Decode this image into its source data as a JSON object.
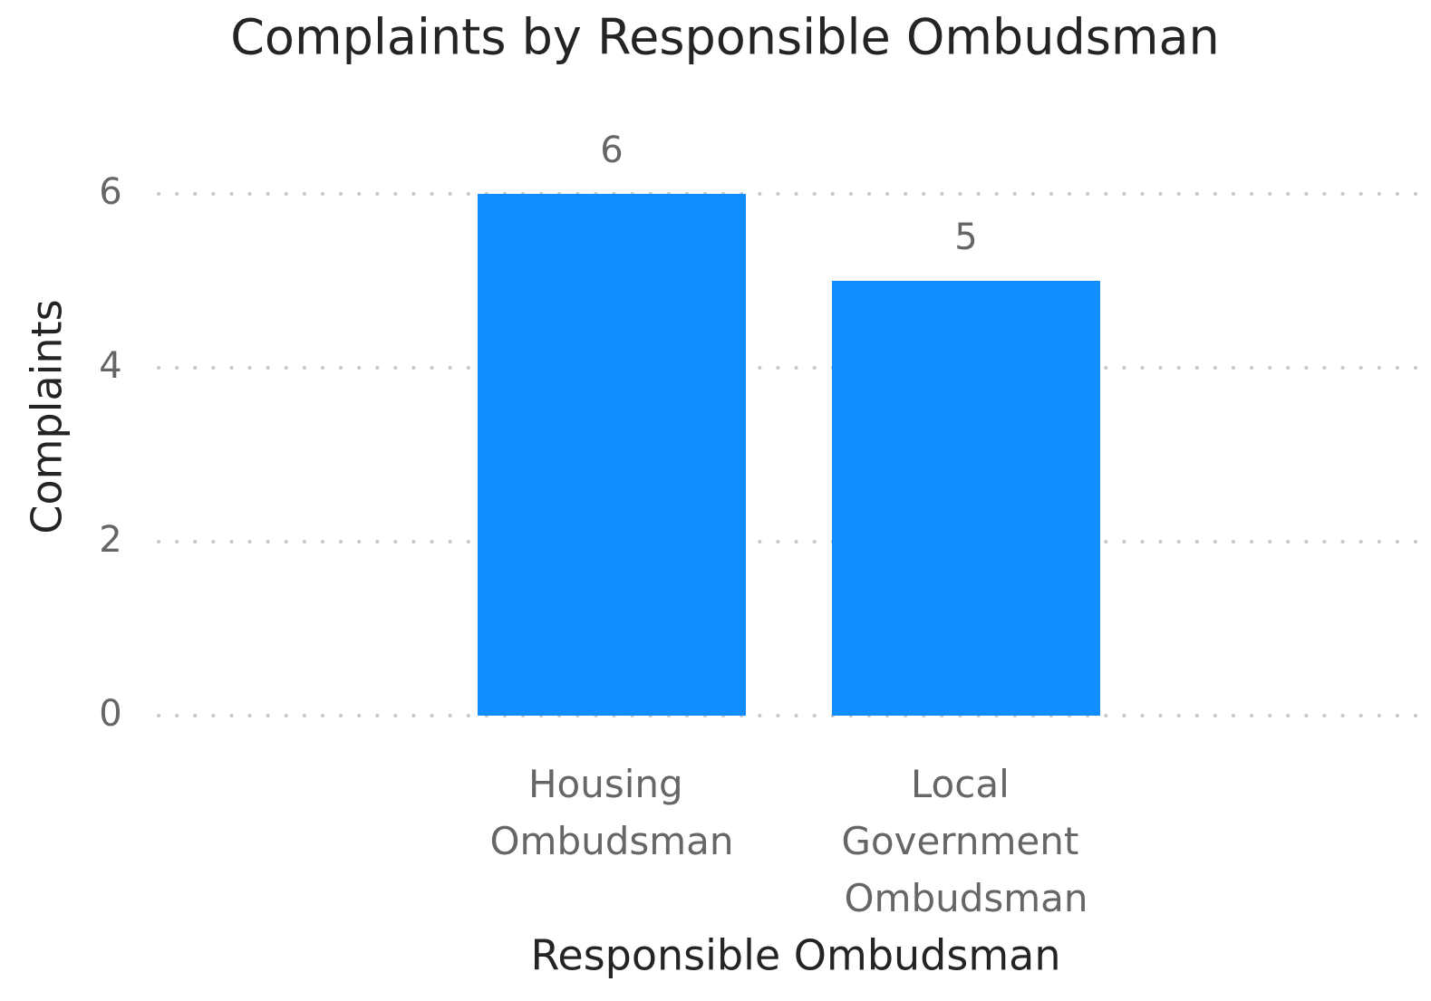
{
  "chart_data": {
    "type": "bar",
    "title": "Complaints by Responsible Ombudsman",
    "x_label": "Responsible Ombudsman",
    "y_label": "Complaints",
    "categories": [
      "Housing Ombudsman",
      "Local Government Ombudsman"
    ],
    "values": [
      6,
      5
    ],
    "color": "#118dff",
    "ylim": [
      0,
      6
    ],
    "yticks": [
      0,
      2,
      4,
      6
    ],
    "grid": true
  }
}
